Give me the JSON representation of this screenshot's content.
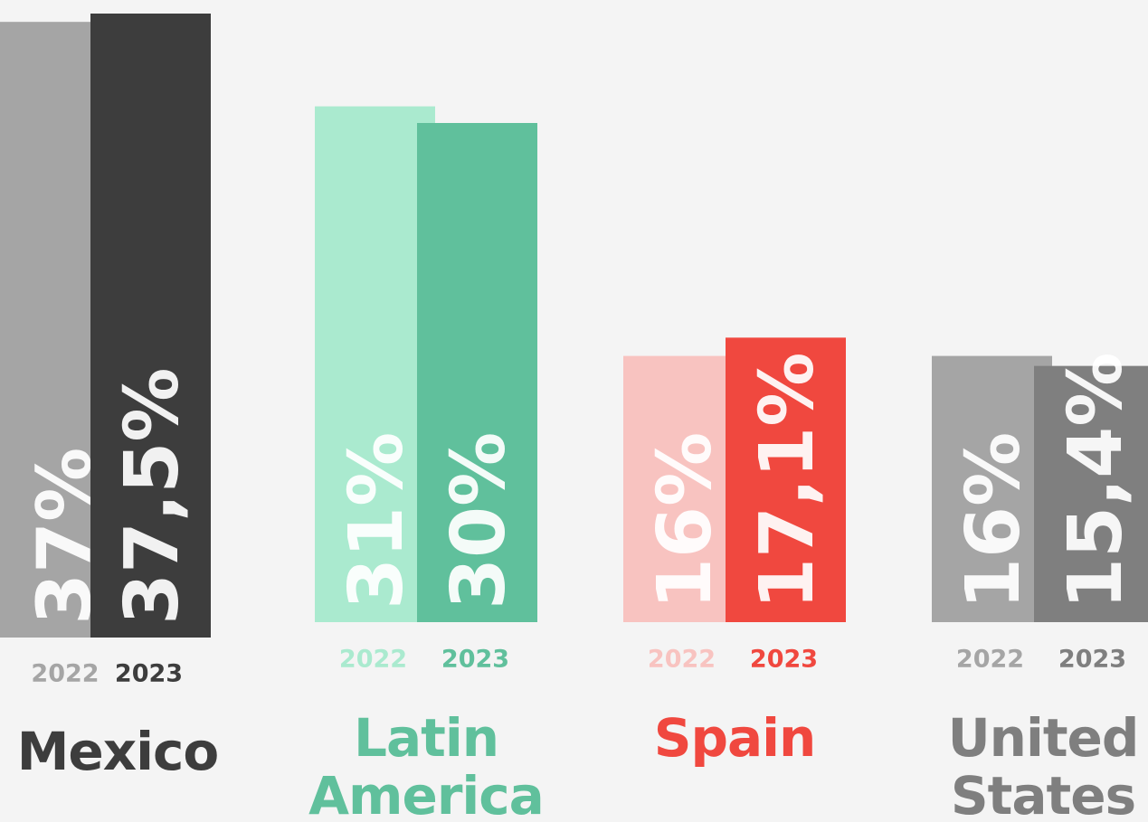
{
  "chart_data": {
    "type": "bar",
    "categories": [
      "Mexico",
      "Latin America",
      "Spain",
      "United States"
    ],
    "series": [
      {
        "name": "2022",
        "values": [
          37,
          31,
          16,
          16
        ],
        "value_labels": [
          "37%",
          "31%",
          "16%",
          "16%"
        ],
        "colors": [
          "#a5a5a5",
          "#aaeacf",
          "#f8c3c0",
          "#a5a5a5"
        ]
      },
      {
        "name": "2023",
        "values": [
          37.5,
          30,
          17.1,
          15.4
        ],
        "value_labels": [
          "37,5%",
          "30%",
          "17,1%",
          "15,4%"
        ],
        "colors": [
          "#3d3d3d",
          "#60c09c",
          "#f0483f",
          "#7f7f7f"
        ]
      }
    ]
  }
}
